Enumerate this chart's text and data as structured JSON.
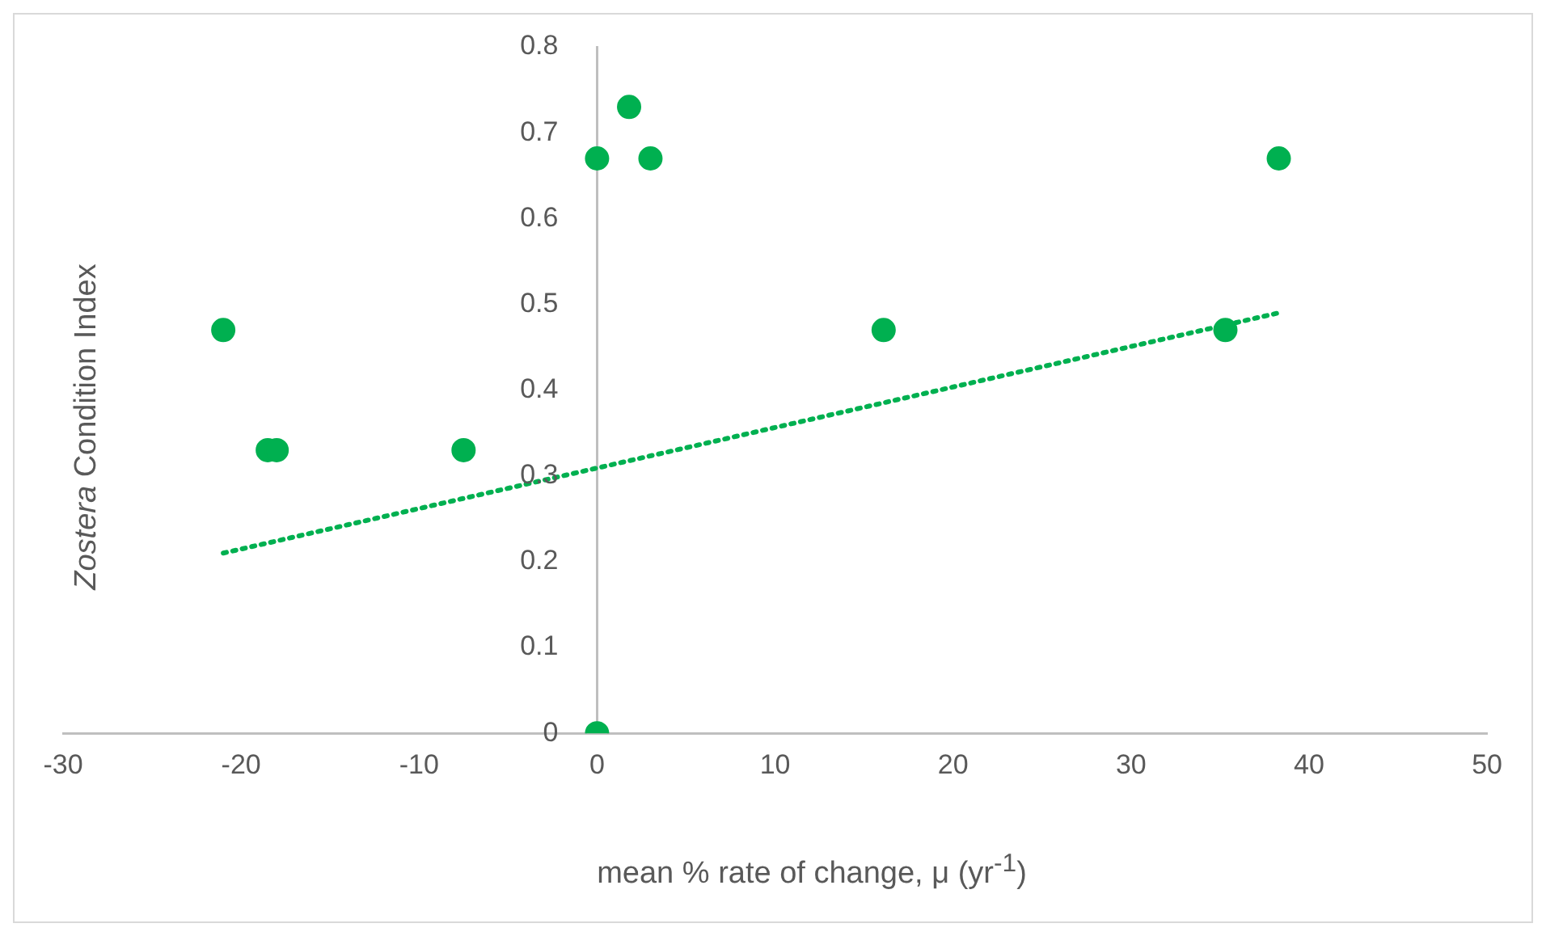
{
  "chart_data": {
    "type": "scatter",
    "xlabel": "mean % rate of change, μ (yr$^{-1}$)",
    "ylabel": "Zostera Condition Index",
    "xlim": [
      -30,
      50
    ],
    "xticks": [
      -30,
      -20,
      -10,
      0,
      10,
      20,
      30,
      40,
      50
    ],
    "ylim": [
      0,
      0.8
    ],
    "yticks": [
      0,
      0.1,
      0.2,
      0.3,
      0.4,
      0.5,
      0.6,
      0.7,
      0.8
    ],
    "grid": false,
    "legend": false,
    "marker": "circle",
    "series": [
      {
        "type": "scatter",
        "color": "#00b050",
        "x": [
          -21.0,
          -18.5,
          -18.0,
          -7.5,
          0,
          1.8,
          3.0,
          16.1,
          35.3,
          38.3,
          0
        ],
        "values": [
          0.47,
          0.33,
          0.33,
          0.33,
          0.67,
          0.73,
          0.67,
          0.47,
          0.47,
          0.67,
          0
        ]
      },
      {
        "type": "line",
        "color": "#00b050",
        "line_style": "dotted",
        "marker": "none",
        "x": [
          -21.0,
          38.3
        ],
        "values": [
          0.21,
          0.49
        ]
      }
    ]
  }
}
